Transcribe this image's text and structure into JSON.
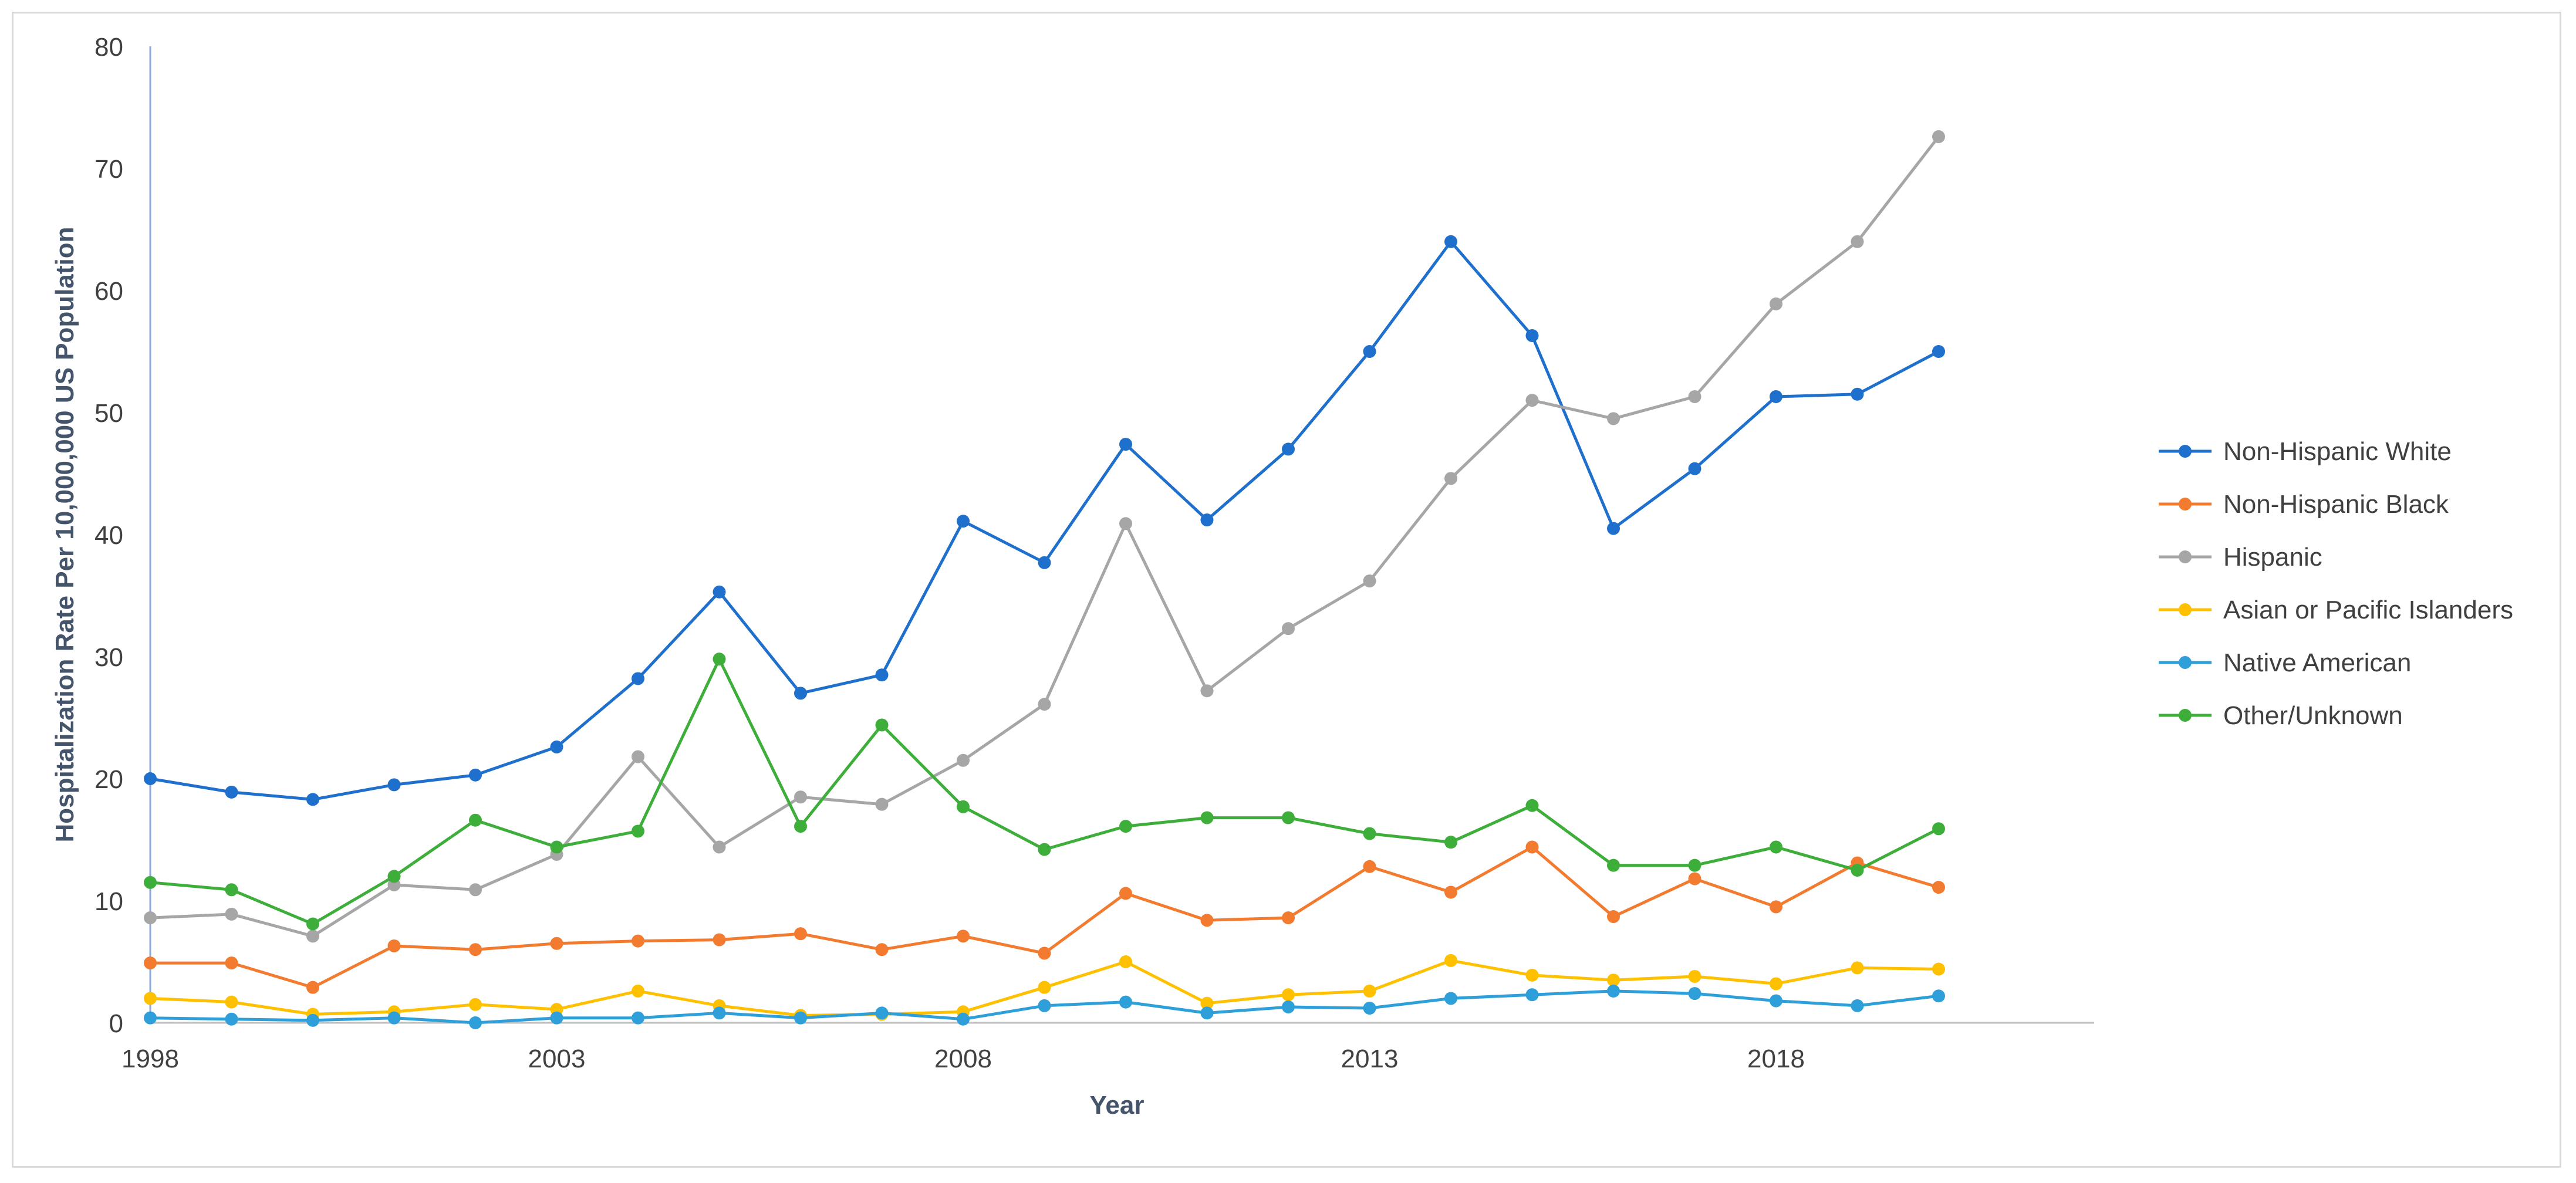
{
  "chart_data": {
    "type": "line",
    "xlabel": "Year",
    "ylabel": "Hospitalization Rate Per 10,000,000 US Population",
    "ylim": [
      0,
      80
    ],
    "yticks": [
      0,
      10,
      20,
      30,
      40,
      50,
      60,
      70,
      80
    ],
    "xlim": [
      1998,
      2022
    ],
    "xticks": [
      1998,
      2003,
      2008,
      2013,
      2018
    ],
    "x": [
      1998,
      1999,
      2000,
      2001,
      2002,
      2003,
      2004,
      2005,
      2006,
      2007,
      2008,
      2009,
      2010,
      2011,
      2012,
      2013,
      2014,
      2015,
      2016,
      2017,
      2018,
      2019,
      2020
    ],
    "legend_position": "right",
    "grid": false,
    "series": [
      {
        "name": "Non-Hispanic White",
        "color": "#1f6fcc",
        "values": [
          20.0,
          18.9,
          18.3,
          19.5,
          20.3,
          22.6,
          28.2,
          35.3,
          27.0,
          28.5,
          41.1,
          37.7,
          47.4,
          41.2,
          47.0,
          55.0,
          64.0,
          56.3,
          40.5,
          45.4,
          51.3,
          51.5,
          55.0
        ]
      },
      {
        "name": "Non-Hispanic Black",
        "color": "#f27b30",
        "values": [
          4.9,
          4.9,
          2.9,
          6.3,
          6.0,
          6.5,
          6.7,
          6.8,
          7.3,
          6.0,
          7.1,
          5.7,
          10.6,
          8.4,
          8.6,
          12.8,
          10.7,
          14.4,
          8.7,
          11.8,
          9.5,
          13.1,
          11.1
        ]
      },
      {
        "name": "Hispanic",
        "color": "#a6a6a6",
        "values": [
          8.6,
          8.9,
          7.1,
          11.3,
          10.9,
          13.8,
          21.8,
          14.4,
          18.5,
          17.9,
          21.5,
          26.1,
          40.9,
          27.2,
          32.3,
          36.2,
          44.6,
          51.0,
          49.5,
          51.3,
          58.9,
          64.0,
          72.6
        ]
      },
      {
        "name": "Asian or Pacific Islanders",
        "color": "#ffc000",
        "values": [
          2.0,
          1.7,
          0.7,
          0.9,
          1.5,
          1.1,
          2.6,
          1.4,
          0.6,
          0.7,
          0.9,
          2.9,
          5.0,
          1.6,
          2.3,
          2.6,
          5.1,
          3.9,
          3.5,
          3.8,
          3.2,
          4.5,
          4.4
        ]
      },
      {
        "name": "Native American",
        "color": "#2e9fd9",
        "values": [
          0.4,
          0.3,
          0.2,
          0.4,
          0.0,
          0.4,
          0.4,
          0.8,
          0.4,
          0.8,
          0.3,
          1.4,
          1.7,
          0.8,
          1.3,
          1.2,
          2.0,
          2.3,
          2.6,
          2.4,
          1.8,
          1.4,
          2.2
        ]
      },
      {
        "name": "Other/Unknown",
        "color": "#3eae3a",
        "values": [
          11.5,
          10.9,
          8.1,
          12.0,
          16.6,
          14.4,
          15.7,
          29.8,
          16.1,
          24.4,
          17.7,
          14.2,
          16.1,
          16.8,
          16.8,
          15.5,
          14.8,
          17.8,
          12.9,
          12.9,
          14.4,
          12.5,
          15.9
        ]
      }
    ]
  }
}
